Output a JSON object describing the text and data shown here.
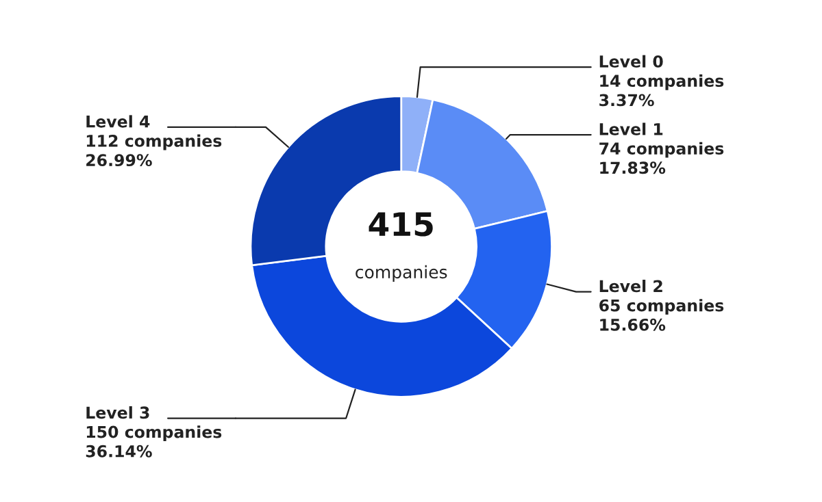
{
  "chart_data": {
    "type": "donut",
    "categories": [
      "Level 0",
      "Level 1",
      "Level 2",
      "Level 3",
      "Level 4"
    ],
    "values": [
      14,
      74,
      65,
      150,
      112
    ],
    "value_labels": [
      "14 companies\n3.37%",
      "74 companies\n17.83%",
      "65 companies\n15.66%",
      "150 companies\n36.14%",
      "112 companies\n26.99%"
    ],
    "colors": [
      "#8fb0f8",
      "#5a8cf6",
      "#2363f0",
      "#0c47dc",
      "#0a3aae"
    ],
    "annotations": [
      "415",
      "companies"
    ],
    "legend": false
  }
}
